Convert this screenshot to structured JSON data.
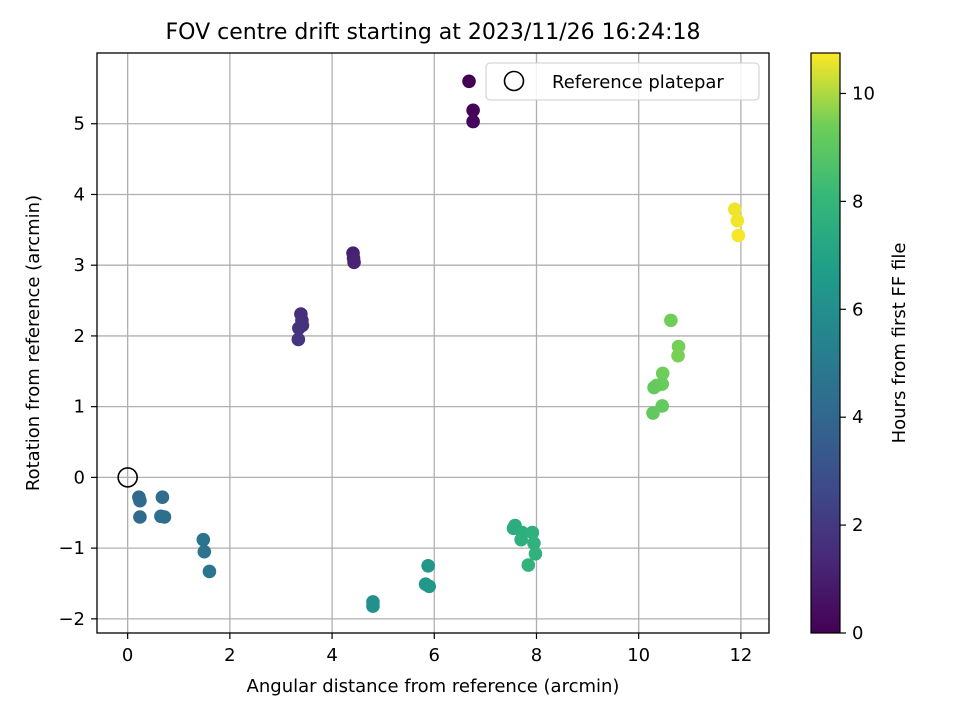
{
  "chart_data": {
    "type": "scatter",
    "title": "FOV centre drift starting at 2023/11/26 16:24:18",
    "xlabel": "Angular distance from reference (arcmin)",
    "ylabel": "Rotation from reference (arcmin)",
    "xlim": [
      -0.6,
      12.55
    ],
    "ylim": [
      -2.2,
      6.0
    ],
    "xticks": [
      0,
      2,
      4,
      6,
      8,
      10,
      12
    ],
    "yticks": [
      -2,
      -1,
      0,
      1,
      2,
      3,
      4,
      5
    ],
    "grid": true,
    "legend": {
      "placement": "top-right",
      "entries": [
        "Reference platepar"
      ]
    },
    "reference": {
      "x": 0,
      "y": 0,
      "label": "Reference platepar"
    },
    "colorbar": {
      "label": "Hours from first FF file",
      "range": [
        0,
        10.75
      ],
      "ticks": [
        0,
        2,
        4,
        6,
        8,
        10
      ],
      "colormap": "viridis"
    },
    "points": [
      {
        "x": 6.68,
        "y": 5.6,
        "h": 0.0
      },
      {
        "x": 6.76,
        "y": 5.19,
        "h": 0.1
      },
      {
        "x": 6.76,
        "y": 5.03,
        "h": 0.2
      },
      {
        "x": 4.41,
        "y": 3.17,
        "h": 1.1
      },
      {
        "x": 4.42,
        "y": 3.1,
        "h": 1.15
      },
      {
        "x": 4.43,
        "y": 3.04,
        "h": 1.2
      },
      {
        "x": 3.39,
        "y": 2.31,
        "h": 1.6
      },
      {
        "x": 3.41,
        "y": 2.22,
        "h": 1.65
      },
      {
        "x": 3.42,
        "y": 2.15,
        "h": 1.7
      },
      {
        "x": 3.35,
        "y": 2.11,
        "h": 1.75
      },
      {
        "x": 3.34,
        "y": 1.95,
        "h": 1.8
      },
      {
        "x": 0.22,
        "y": -0.28,
        "h": 4.1
      },
      {
        "x": 0.24,
        "y": -0.33,
        "h": 4.15
      },
      {
        "x": 0.24,
        "y": -0.56,
        "h": 4.2
      },
      {
        "x": 0.68,
        "y": -0.28,
        "h": 4.3
      },
      {
        "x": 0.65,
        "y": -0.55,
        "h": 4.35
      },
      {
        "x": 0.72,
        "y": -0.56,
        "h": 4.4
      },
      {
        "x": 1.48,
        "y": -0.88,
        "h": 4.6
      },
      {
        "x": 1.5,
        "y": -1.05,
        "h": 4.65
      },
      {
        "x": 1.6,
        "y": -1.33,
        "h": 4.7
      },
      {
        "x": 4.8,
        "y": -1.76,
        "h": 6.0
      },
      {
        "x": 4.8,
        "y": -1.82,
        "h": 6.05
      },
      {
        "x": 5.88,
        "y": -1.25,
        "h": 6.4
      },
      {
        "x": 5.83,
        "y": -1.51,
        "h": 6.45
      },
      {
        "x": 5.9,
        "y": -1.54,
        "h": 6.5
      },
      {
        "x": 7.55,
        "y": -0.72,
        "h": 7.5
      },
      {
        "x": 7.58,
        "y": -0.68,
        "h": 7.55
      },
      {
        "x": 7.72,
        "y": -0.78,
        "h": 7.6
      },
      {
        "x": 7.7,
        "y": -0.88,
        "h": 7.65
      },
      {
        "x": 7.92,
        "y": -0.78,
        "h": 7.7
      },
      {
        "x": 7.95,
        "y": -0.93,
        "h": 7.75
      },
      {
        "x": 7.98,
        "y": -1.08,
        "h": 7.8
      },
      {
        "x": 7.84,
        "y": -1.24,
        "h": 7.85
      },
      {
        "x": 10.63,
        "y": 2.22,
        "h": 9.4
      },
      {
        "x": 10.78,
        "y": 1.85,
        "h": 9.45
      },
      {
        "x": 10.77,
        "y": 1.72,
        "h": 9.5
      },
      {
        "x": 10.47,
        "y": 1.47,
        "h": 9.35
      },
      {
        "x": 10.46,
        "y": 1.32,
        "h": 9.3
      },
      {
        "x": 10.35,
        "y": 1.3,
        "h": 9.25
      },
      {
        "x": 10.3,
        "y": 1.27,
        "h": 9.2
      },
      {
        "x": 10.46,
        "y": 1.01,
        "h": 9.15
      },
      {
        "x": 10.28,
        "y": 0.91,
        "h": 9.1
      },
      {
        "x": 11.88,
        "y": 3.79,
        "h": 10.6
      },
      {
        "x": 11.93,
        "y": 3.63,
        "h": 10.65
      },
      {
        "x": 11.95,
        "y": 3.42,
        "h": 10.7
      }
    ]
  }
}
